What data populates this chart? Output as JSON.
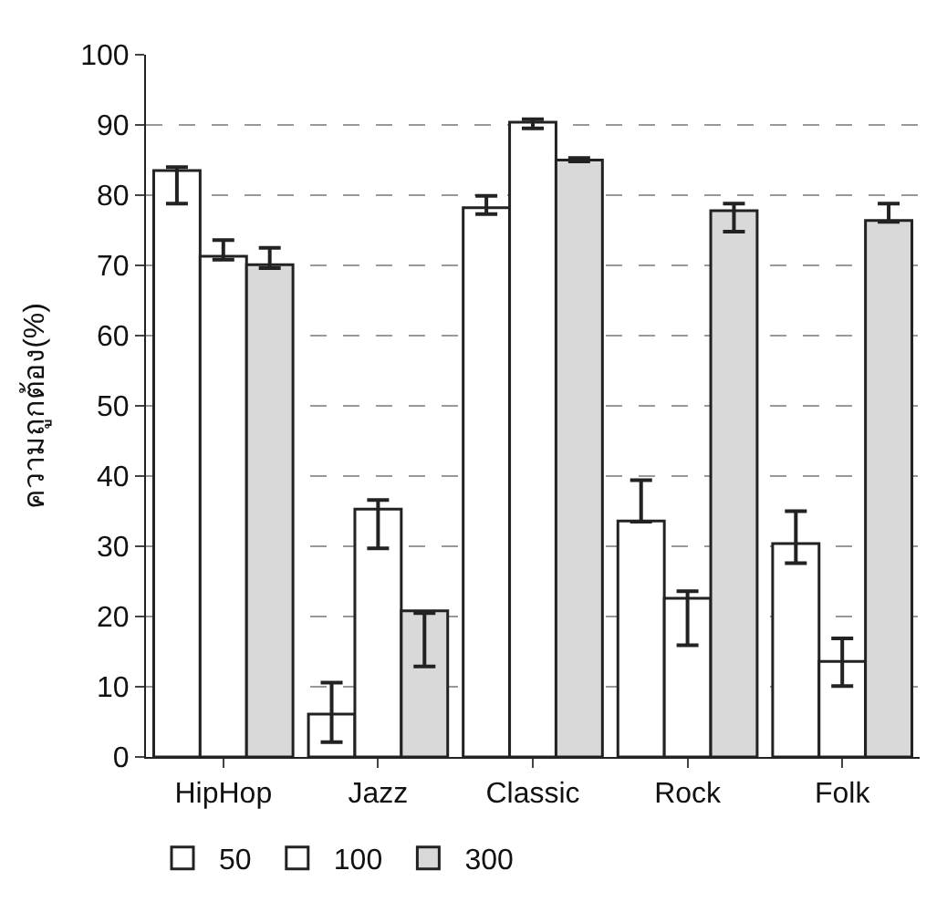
{
  "chart_data": {
    "type": "bar",
    "ylabel": "ความถูกต้อง(%)",
    "categories": [
      "HipHop",
      "Jazz",
      "Classic",
      "Rock",
      "Folk"
    ],
    "series": [
      {
        "name": "50",
        "color": "#ffffff",
        "values": [
          83.5,
          6.1,
          78.2,
          33.6,
          30.4
        ],
        "errors": [
          [
            78.8,
            84
          ],
          [
            2.1,
            10.6
          ],
          [
            77.3,
            79.9
          ],
          [
            33.5,
            39.4
          ],
          [
            27.6,
            35.0
          ]
        ]
      },
      {
        "name": "100",
        "color": "#ffffff",
        "values": [
          71.3,
          35.3,
          90.4,
          22.6,
          13.6
        ],
        "errors": [
          [
            70.8,
            73.6
          ],
          [
            29.7,
            36.6
          ],
          [
            89.5,
            90.8
          ],
          [
            15.9,
            23.6
          ],
          [
            10.1,
            16.9
          ]
        ]
      },
      {
        "name": "300",
        "color": "#d9d9d9",
        "values": [
          70.1,
          20.8,
          85.0,
          77.8,
          76.4
        ],
        "errors": [
          [
            69.6,
            72.5
          ],
          [
            12.9,
            20.5
          ],
          [
            84.8,
            85.3
          ],
          [
            74.8,
            78.8
          ],
          [
            76.2,
            78.8
          ]
        ]
      }
    ],
    "ylim": [
      0,
      100
    ],
    "yticks": [
      0,
      10,
      20,
      30,
      40,
      50,
      60,
      70,
      80,
      90,
      100
    ],
    "grid": "y",
    "legend": "bottom"
  }
}
